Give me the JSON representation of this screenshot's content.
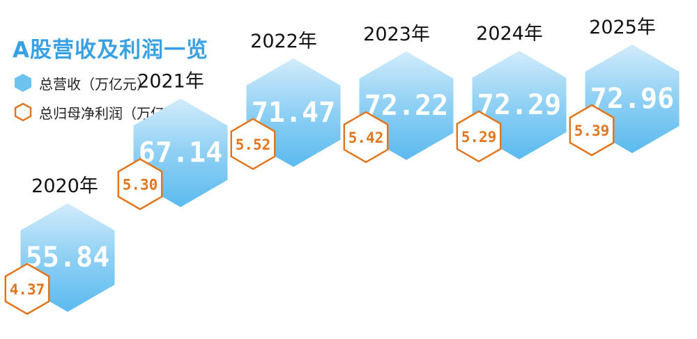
{
  "title": "A股营收及利润一览",
  "legend": [
    {
      "label": "总营收（万亿元）",
      "style": "filled",
      "color": "#6cc3f0"
    },
    {
      "label": "总归母净利润（万亿元）",
      "style": "outline",
      "color": "#e2761e"
    }
  ],
  "chart_data": {
    "type": "bar",
    "title": "A股营收及利润一览",
    "categories": [
      "2020年",
      "2021年",
      "2022年",
      "2023年",
      "2024年",
      "2025年"
    ],
    "series": [
      {
        "name": "总营收（万亿元）",
        "values": [
          "55.84",
          "67.14",
          "71.47",
          "72.22",
          "72.29",
          "72.96"
        ],
        "color": "#6cc3f0"
      },
      {
        "name": "总归母净利润（万亿元）",
        "values": [
          "4.37",
          "5.30",
          "5.52",
          "5.42",
          "5.29",
          "5.39"
        ],
        "color": "#e2761e"
      }
    ]
  }
}
